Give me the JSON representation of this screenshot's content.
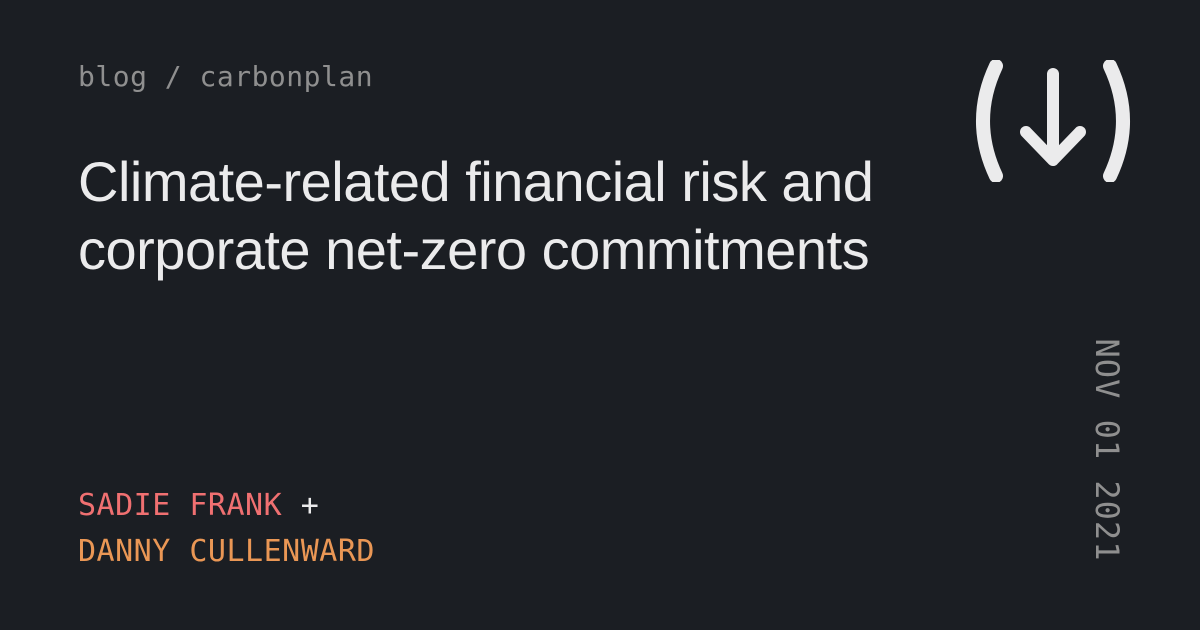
{
  "header": {
    "breadcrumb": "blog / carbonplan"
  },
  "post": {
    "title": "Climate-related financial risk and corporate net-zero commitments",
    "date": "NOV 01 2021"
  },
  "authors": {
    "first": "SADIE FRANK",
    "joiner": "+",
    "second": "DANNY CULLENWARD"
  },
  "logo": {
    "icon": "carbonplan-arrow-down-icon"
  },
  "colors": {
    "background": "#1b1e23",
    "primary_text": "#ebebec",
    "secondary_text": "#8f8f8f",
    "author_red": "#f07071",
    "author_orange": "#ea9755"
  }
}
